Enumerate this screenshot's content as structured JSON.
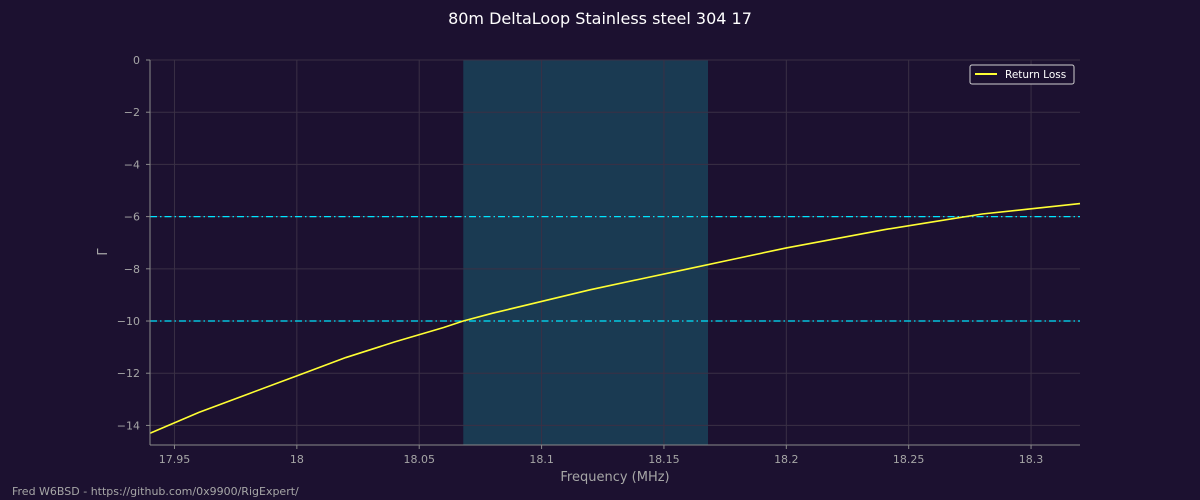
{
  "chart_data": {
    "type": "line",
    "title": "80m DeltaLoop Stainless steel 304 17",
    "xlabel": "Frequency (MHz)",
    "ylabel": "Γ",
    "xlim": [
      17.94,
      18.32
    ],
    "ylim": [
      -14.75,
      0
    ],
    "x_ticks": [
      17.95,
      18.0,
      18.05,
      18.1,
      18.15,
      18.2,
      18.25,
      18.3
    ],
    "x_tick_labels": [
      "17.95",
      "18",
      "18.05",
      "18.1",
      "18.15",
      "18.2",
      "18.25",
      "18.3"
    ],
    "y_ticks": [
      0,
      -2,
      -4,
      -6,
      -8,
      -10,
      -12,
      -14
    ],
    "y_tick_labels": [
      "0",
      "−2",
      "−4",
      "−6",
      "−8",
      "−10",
      "−12",
      "−14"
    ],
    "grid": true,
    "legend_position": "top-right",
    "series": [
      {
        "name": "Return Loss",
        "color": "#ffff33",
        "x": [
          17.94,
          17.96,
          17.98,
          18.0,
          18.02,
          18.04,
          18.06,
          18.068,
          18.08,
          18.1,
          18.12,
          18.14,
          18.16,
          18.18,
          18.2,
          18.22,
          18.24,
          18.26,
          18.28,
          18.3,
          18.32
        ],
        "y": [
          -14.3,
          -13.5,
          -12.8,
          -12.1,
          -11.4,
          -10.8,
          -10.25,
          -10.0,
          -9.7,
          -9.25,
          -8.8,
          -8.4,
          -8.0,
          -7.6,
          -7.2,
          -6.85,
          -6.5,
          -6.2,
          -5.9,
          -5.7,
          -5.5
        ]
      }
    ],
    "reference_lines": [
      {
        "y": -6,
        "color": "#00e5ff",
        "style": "dash-dot"
      },
      {
        "y": -10,
        "color": "#00e5ff",
        "style": "dash-dot"
      }
    ],
    "highlight_band": {
      "x_start": 18.068,
      "x_end": 18.168,
      "color": "#1a3a52"
    }
  },
  "footer": {
    "credit": "Fred W6BSD - https://github.com/0x9900/RigExpert/"
  }
}
